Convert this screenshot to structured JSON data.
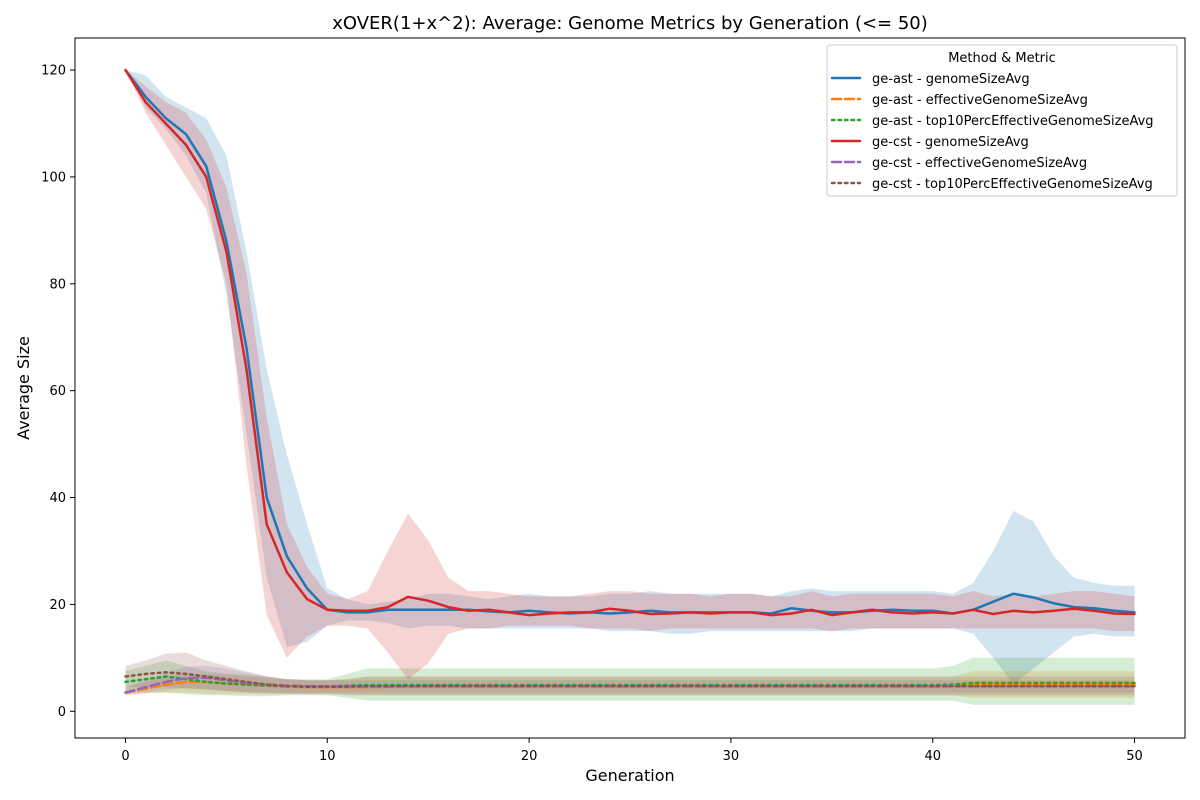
{
  "chart_data": {
    "type": "line",
    "title": "xOVER(1+x^2): Average: Genome Metrics by Generation (<= 50)",
    "xlabel": "Generation",
    "ylabel": "Average Size",
    "xlim": [
      -2.5,
      52.5
    ],
    "ylim": [
      -5,
      126
    ],
    "xticks": [
      0,
      10,
      20,
      30,
      40,
      50
    ],
    "yticks": [
      0,
      20,
      40,
      60,
      80,
      100,
      120
    ],
    "grid": false,
    "legend": {
      "title": "Method & Metric",
      "placement": "top-right"
    },
    "series": [
      {
        "name": "ge-ast - genomeSizeAvg",
        "color": "#1f77b4",
        "dash": "solid",
        "x": [
          0,
          1,
          2,
          3,
          4,
          5,
          6,
          7,
          8,
          9,
          10,
          11,
          12,
          13,
          14,
          15,
          16,
          17,
          18,
          19,
          20,
          21,
          22,
          23,
          24,
          25,
          26,
          27,
          28,
          29,
          30,
          31,
          32,
          33,
          34,
          35,
          36,
          37,
          38,
          39,
          40,
          41,
          42,
          43,
          44,
          45,
          46,
          47,
          48,
          49,
          50
        ],
        "y": [
          120,
          115,
          111,
          108,
          102,
          88,
          68,
          40,
          29,
          23,
          19,
          18.5,
          18.5,
          19,
          19,
          19,
          19,
          19,
          18.7,
          18.5,
          18.8,
          18.5,
          18.3,
          18.5,
          18.3,
          18.5,
          18.8,
          18.5,
          18.5,
          18.5,
          18.5,
          18.5,
          18.3,
          19.3,
          18.8,
          18.5,
          18.5,
          18.8,
          19,
          18.8,
          18.8,
          18.3,
          19,
          20.5,
          22,
          21.3,
          20.2,
          19.5,
          19.3,
          18.8,
          18.5
        ],
        "band_low": [
          120,
          113,
          109,
          104,
          97,
          78,
          52,
          25,
          12,
          13,
          16,
          17,
          17,
          16.5,
          15.5,
          16,
          16,
          15.5,
          15.5,
          15.5,
          15.5,
          15.5,
          15.5,
          15.5,
          15,
          15,
          15,
          14.5,
          14.5,
          15,
          15,
          15,
          15,
          15,
          15,
          15,
          15,
          15.5,
          15.5,
          15.5,
          15.5,
          15.5,
          14.5,
          10,
          5,
          8,
          11,
          14,
          14.5,
          14,
          14
        ],
        "band_high": [
          120,
          119,
          115,
          113,
          111,
          104,
          86,
          64,
          48,
          35,
          23,
          21,
          20,
          20.5,
          21,
          22,
          22,
          21.5,
          21,
          21.5,
          22,
          21.5,
          21.5,
          21.5,
          22,
          22,
          22.5,
          22,
          22,
          22,
          22,
          22,
          21.5,
          22.5,
          23,
          22.5,
          22.5,
          22.5,
          22.5,
          22.5,
          22.5,
          22,
          24,
          30,
          37.5,
          35.5,
          29,
          25,
          24,
          23.5,
          23.5
        ]
      },
      {
        "name": "ge-ast - effectiveGenomeSizeAvg",
        "color": "#ff7f0e",
        "dash": "dashed",
        "x": [
          0,
          1,
          2,
          3,
          4,
          5,
          6,
          7,
          8,
          9,
          10,
          11,
          12,
          13,
          14,
          15,
          16,
          17,
          18,
          19,
          20,
          21,
          22,
          23,
          24,
          25,
          26,
          27,
          28,
          29,
          30,
          31,
          32,
          33,
          34,
          35,
          36,
          37,
          38,
          39,
          40,
          41,
          42,
          43,
          44,
          45,
          46,
          47,
          48,
          49,
          50
        ],
        "y": [
          3.5,
          4.2,
          5,
          5.5,
          5.5,
          5.2,
          5,
          4.8,
          4.6,
          4.5,
          4.5,
          4.5,
          4.5,
          4.6,
          4.7,
          4.8,
          4.8,
          4.8,
          4.8,
          4.8,
          4.8,
          4.8,
          4.8,
          4.8,
          4.8,
          4.8,
          4.8,
          4.8,
          4.8,
          4.8,
          4.8,
          4.8,
          4.8,
          4.8,
          4.8,
          4.8,
          4.8,
          4.8,
          4.8,
          4.8,
          4.8,
          4.8,
          5,
          5,
          5,
          5,
          5,
          5,
          5,
          5,
          5
        ],
        "band_low": [
          3,
          3.3,
          3.5,
          3.5,
          3.3,
          3.2,
          3.2,
          3.2,
          3.2,
          3.3,
          3.3,
          3.2,
          3,
          3,
          3,
          3,
          3,
          3,
          3,
          3,
          3,
          3,
          3,
          3,
          3,
          3,
          3,
          3,
          3,
          3,
          3,
          3,
          3,
          3,
          3,
          3,
          3,
          3,
          3,
          3,
          3,
          3,
          2.5,
          2.5,
          2.5,
          2.5,
          2.5,
          2.5,
          2.5,
          2.5,
          2.5
        ],
        "band_high": [
          4.5,
          5.5,
          6.5,
          7,
          7,
          6.8,
          6.5,
          6.2,
          6,
          5.8,
          5.8,
          6,
          6.5,
          6.5,
          6.5,
          6.5,
          6.5,
          6.5,
          6.5,
          6.5,
          6.5,
          6.5,
          6.5,
          6.5,
          6.5,
          6.5,
          6.5,
          6.5,
          6.5,
          6.5,
          6.5,
          6.5,
          6.5,
          6.5,
          6.5,
          6.5,
          6.5,
          6.5,
          6.5,
          6.5,
          6.5,
          6.5,
          7.5,
          7.5,
          7.5,
          7.5,
          7.5,
          7.5,
          7.5,
          7.5,
          7.5
        ]
      },
      {
        "name": "ge-ast - top10PercEffectiveGenomeSizeAvg",
        "color": "#2ca02c",
        "dash": "dotted",
        "x": [
          0,
          1,
          2,
          3,
          4,
          5,
          6,
          7,
          8,
          9,
          10,
          11,
          12,
          13,
          14,
          15,
          16,
          17,
          18,
          19,
          20,
          21,
          22,
          23,
          24,
          25,
          26,
          27,
          28,
          29,
          30,
          31,
          32,
          33,
          34,
          35,
          36,
          37,
          38,
          39,
          40,
          41,
          42,
          43,
          44,
          45,
          46,
          47,
          48,
          49,
          50
        ],
        "y": [
          5.5,
          6,
          6.5,
          6,
          5.5,
          5.2,
          5,
          4.8,
          4.7,
          4.6,
          4.6,
          4.8,
          4.9,
          4.9,
          4.9,
          4.9,
          4.9,
          4.9,
          4.9,
          4.9,
          4.9,
          4.9,
          4.9,
          4.9,
          4.9,
          4.9,
          4.9,
          4.9,
          4.9,
          4.9,
          4.9,
          4.9,
          4.9,
          4.9,
          4.9,
          4.9,
          4.9,
          4.9,
          4.9,
          4.9,
          4.9,
          5,
          5.3,
          5.3,
          5.3,
          5.3,
          5.3,
          5.3,
          5.3,
          5.3,
          5.3
        ],
        "band_low": [
          3.5,
          3.5,
          3.5,
          3.2,
          3,
          3,
          2.8,
          2.8,
          3,
          3,
          3,
          2.5,
          2,
          2,
          2,
          2,
          2,
          2,
          2,
          2,
          2,
          2,
          2,
          2,
          2,
          2,
          2,
          2,
          2,
          2,
          2,
          2,
          2,
          2,
          2,
          2,
          2,
          2,
          2,
          2,
          2,
          2,
          1.2,
          1.2,
          1.2,
          1.2,
          1.2,
          1.2,
          1.2,
          1.2,
          1.2
        ],
        "band_high": [
          7.5,
          8.5,
          9.5,
          8.5,
          7.5,
          7,
          6.8,
          6.5,
          6,
          6,
          6,
          7,
          8,
          8,
          8,
          8,
          8,
          8,
          8,
          8,
          8,
          8,
          8,
          8,
          8,
          8,
          8,
          8,
          8,
          8,
          8,
          8,
          8,
          8,
          8,
          8,
          8,
          8,
          8,
          8,
          8,
          8.5,
          10,
          10,
          10,
          10,
          10,
          10,
          10,
          10,
          10
        ]
      },
      {
        "name": "ge-cst - genomeSizeAvg",
        "color": "#d62728",
        "dash": "solid",
        "x": [
          0,
          1,
          2,
          3,
          4,
          5,
          6,
          7,
          8,
          9,
          10,
          11,
          12,
          13,
          14,
          15,
          16,
          17,
          18,
          19,
          20,
          21,
          22,
          23,
          24,
          25,
          26,
          27,
          28,
          29,
          30,
          31,
          32,
          33,
          34,
          35,
          36,
          37,
          38,
          39,
          40,
          41,
          42,
          43,
          44,
          45,
          46,
          47,
          48,
          49,
          50
        ],
        "y": [
          120,
          114,
          110,
          106,
          100,
          86,
          64,
          35,
          26,
          21,
          19,
          18.8,
          18.8,
          19.5,
          21.4,
          20.7,
          19.5,
          18.8,
          19,
          18.5,
          18,
          18.3,
          18.5,
          18.5,
          19.2,
          18.8,
          18.2,
          18.3,
          18.5,
          18.3,
          18.5,
          18.5,
          18,
          18.3,
          19,
          18,
          18.5,
          19,
          18.5,
          18.3,
          18.5,
          18.3,
          19,
          18.2,
          18.8,
          18.5,
          18.8,
          19.2,
          18.8,
          18.3,
          18.2
        ],
        "band_low": [
          120,
          112,
          106,
          100,
          94,
          80,
          46,
          18,
          10,
          14,
          16,
          16,
          15.5,
          11,
          6,
          9,
          14.5,
          15.5,
          15.5,
          16,
          16,
          16,
          16,
          15.5,
          15.5,
          15.5,
          15,
          15.5,
          15.5,
          15.5,
          15.5,
          15.5,
          15.5,
          15.5,
          15.5,
          15,
          15.5,
          15.5,
          15.5,
          15.5,
          15.5,
          15.5,
          15.5,
          15.5,
          15.5,
          15.5,
          15.5,
          15.5,
          15.5,
          15,
          15
        ],
        "band_high": [
          120,
          117,
          114,
          112,
          107,
          98,
          82,
          55,
          35,
          27,
          22,
          21,
          22.5,
          30,
          37,
          32,
          25,
          22.5,
          22.5,
          22,
          21.5,
          21.5,
          21.5,
          22,
          22.5,
          22.5,
          22,
          22,
          22,
          21.5,
          22,
          22,
          21.5,
          21.5,
          22.5,
          21.5,
          22,
          22,
          22,
          22,
          22,
          21.5,
          22.5,
          21.5,
          22,
          21.5,
          22,
          22.5,
          22.5,
          22,
          21.5
        ]
      },
      {
        "name": "ge-cst - effectiveGenomeSizeAvg",
        "color": "#9467bd",
        "dash": "dashed",
        "x": [
          0,
          1,
          2,
          3,
          4,
          5,
          6,
          7,
          8,
          9,
          10,
          11,
          12,
          13,
          14,
          15,
          16,
          17,
          18,
          19,
          20,
          21,
          22,
          23,
          24,
          25,
          26,
          27,
          28,
          29,
          30,
          31,
          32,
          33,
          34,
          35,
          36,
          37,
          38,
          39,
          40,
          41,
          42,
          43,
          44,
          45,
          46,
          47,
          48,
          49,
          50
        ],
        "y": [
          3.5,
          4.5,
          5.5,
          6.2,
          6.3,
          5.8,
          5.3,
          5,
          4.8,
          4.7,
          4.7,
          4.7,
          4.7,
          4.7,
          4.7,
          4.7,
          4.7,
          4.7,
          4.7,
          4.7,
          4.7,
          4.7,
          4.7,
          4.7,
          4.7,
          4.7,
          4.7,
          4.7,
          4.7,
          4.7,
          4.7,
          4.7,
          4.7,
          4.7,
          4.7,
          4.7,
          4.7,
          4.7,
          4.7,
          4.7,
          4.7,
          4.7,
          4.7,
          4.7,
          4.7,
          4.7,
          4.7,
          4.7,
          4.7,
          4.7,
          4.7
        ],
        "band_low": [
          3,
          3.5,
          4,
          4.3,
          4.2,
          3.8,
          3.5,
          3.5,
          3.5,
          3.5,
          3.5,
          3.5,
          3.5,
          3.5,
          3.5,
          3.5,
          3.5,
          3.5,
          3.5,
          3.5,
          3.5,
          3.5,
          3.5,
          3.5,
          3.5,
          3.5,
          3.5,
          3.5,
          3.5,
          3.5,
          3.5,
          3.5,
          3.5,
          3.5,
          3.5,
          3.5,
          3.5,
          3.5,
          3.5,
          3.5,
          3.5,
          3.5,
          3.5,
          3.5,
          3.5,
          3.5,
          3.5,
          3.5,
          3.5,
          3.5,
          3.5
        ],
        "band_high": [
          4.5,
          5.8,
          7.2,
          8.3,
          8.5,
          8,
          7.2,
          6.5,
          6,
          5.8,
          5.8,
          5.8,
          5.8,
          5.8,
          5.8,
          5.8,
          5.8,
          5.8,
          5.8,
          5.8,
          5.8,
          5.8,
          5.8,
          5.8,
          5.8,
          5.8,
          5.8,
          5.8,
          5.8,
          5.8,
          5.8,
          5.8,
          5.8,
          5.8,
          5.8,
          5.8,
          5.8,
          5.8,
          5.8,
          5.8,
          5.8,
          5.8,
          5.8,
          5.8,
          5.8,
          5.8,
          5.8,
          5.8,
          5.8,
          5.8,
          5.8
        ]
      },
      {
        "name": "ge-cst - top10PercEffectiveGenomeSizeAvg",
        "color": "#8c564b",
        "dash": "dotted",
        "x": [
          0,
          1,
          2,
          3,
          4,
          5,
          6,
          7,
          8,
          9,
          10,
          11,
          12,
          13,
          14,
          15,
          16,
          17,
          18,
          19,
          20,
          21,
          22,
          23,
          24,
          25,
          26,
          27,
          28,
          29,
          30,
          31,
          32,
          33,
          34,
          35,
          36,
          37,
          38,
          39,
          40,
          41,
          42,
          43,
          44,
          45,
          46,
          47,
          48,
          49,
          50
        ],
        "y": [
          6.5,
          7,
          7.3,
          7,
          6.5,
          6,
          5.5,
          5,
          4.7,
          4.6,
          4.6,
          4.6,
          4.7,
          4.7,
          4.7,
          4.7,
          4.7,
          4.7,
          4.7,
          4.7,
          4.7,
          4.7,
          4.7,
          4.7,
          4.7,
          4.7,
          4.7,
          4.7,
          4.7,
          4.7,
          4.7,
          4.7,
          4.7,
          4.7,
          4.7,
          4.7,
          4.7,
          4.7,
          4.7,
          4.7,
          4.7,
          4.7,
          4.7,
          4.7,
          4.7,
          4.7,
          4.7,
          4.7,
          4.7,
          4.7,
          4.7
        ],
        "band_low": [
          4.5,
          4.5,
          4.5,
          4.3,
          4,
          3.8,
          3.6,
          3.4,
          3.3,
          3.2,
          3.2,
          3,
          3,
          3,
          3,
          3,
          3,
          3,
          3,
          3,
          3,
          3,
          3,
          3,
          3,
          3,
          3,
          3,
          3,
          3,
          3,
          3,
          3,
          3,
          3,
          3,
          3,
          3,
          3,
          3,
          3,
          3,
          3,
          3,
          3,
          3,
          3,
          3,
          3,
          3,
          3
        ],
        "band_high": [
          8.5,
          9.5,
          10.8,
          11,
          9.5,
          8.5,
          7.5,
          6.5,
          6,
          5.8,
          5.8,
          6,
          6.5,
          6.5,
          6.5,
          6.5,
          6.5,
          6.5,
          6.5,
          6.5,
          6.5,
          6.5,
          6.5,
          6.5,
          6.5,
          6.5,
          6.5,
          6.5,
          6.5,
          6.5,
          6.5,
          6.5,
          6.5,
          6.5,
          6.5,
          6.5,
          6.5,
          6.5,
          6.5,
          6.5,
          6.5,
          6.5,
          6.5,
          6.5,
          6.5,
          6.5,
          6.5,
          6.5,
          6.5,
          6.5,
          6.5
        ]
      }
    ]
  }
}
